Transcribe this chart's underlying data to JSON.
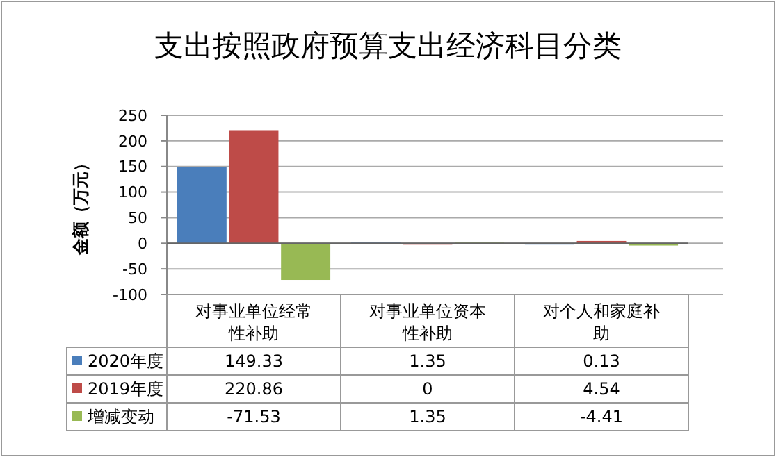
{
  "chart_data": {
    "type": "bar",
    "title": "支出按照政府预算支出经济科目分类",
    "ylabel": "金额（万元）",
    "categories": [
      "对事业单位经常性补助",
      "对事业单位资本性补助",
      "对个人和家庭补助"
    ],
    "series": [
      {
        "name": "2020年度",
        "color": "#4a7ebb",
        "values": [
          149.33,
          1.35,
          0.13
        ]
      },
      {
        "name": "2019年度",
        "color": "#be4b48",
        "values": [
          220.86,
          0,
          4.54
        ]
      },
      {
        "name": "增减变动",
        "color": "#98b954",
        "values": [
          -71.53,
          1.35,
          -4.41
        ]
      }
    ],
    "ylim": [
      -100,
      250
    ],
    "yticks": [
      -100,
      -50,
      0,
      50,
      100,
      150,
      200,
      250
    ],
    "grid": "y",
    "data_labels": true,
    "legend": "bottom"
  }
}
